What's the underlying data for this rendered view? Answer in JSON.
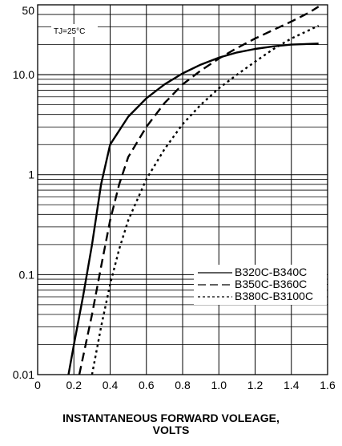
{
  "chart_data": {
    "type": "line",
    "x_scale": "linear",
    "y_scale": "log",
    "xlim": [
      0,
      1.6
    ],
    "ylim": [
      0.01,
      50
    ],
    "x_ticks": [
      "0",
      "0.2",
      "0.4",
      "0.6",
      "0.8",
      "1.0",
      "1.2",
      "1.4",
      "1.6"
    ],
    "y_ticks": [
      {
        "value": 0.01,
        "label": "0.01"
      },
      {
        "value": 0.1,
        "label": "0.1"
      },
      {
        "value": 1,
        "label": "1"
      },
      {
        "value": 10,
        "label": "10.0"
      },
      {
        "value": 50,
        "label": "50"
      }
    ],
    "grid": true,
    "xlabel_line1": "INSTANTANEOUS FORWARD VOLEAGE,",
    "xlabel_line2": "VOLTS",
    "annotation": "TJ=25°C",
    "legend_position": "lower-right",
    "series": [
      {
        "name": "B320C-B340C",
        "style": "solid",
        "color": "#000000",
        "x": [
          0.17,
          0.2,
          0.25,
          0.3,
          0.35,
          0.4,
          0.5,
          0.6,
          0.7,
          0.8,
          0.9,
          1.0,
          1.1,
          1.2,
          1.3,
          1.4,
          1.55
        ],
        "y": [
          0.01,
          0.02,
          0.06,
          0.2,
          0.8,
          2.0,
          3.8,
          5.8,
          8.0,
          10.3,
          12.6,
          14.8,
          16.7,
          18.1,
          19.2,
          20.0,
          20.5
        ]
      },
      {
        "name": "B350C-B360C",
        "style": "dashed",
        "color": "#000000",
        "x": [
          0.23,
          0.3,
          0.35,
          0.4,
          0.45,
          0.5,
          0.6,
          0.7,
          0.8,
          0.9,
          1.0,
          1.1,
          1.2,
          1.3,
          1.4,
          1.5,
          1.55
        ],
        "y": [
          0.01,
          0.04,
          0.12,
          0.35,
          0.8,
          1.5,
          3.0,
          5.2,
          8.0,
          11.0,
          14.5,
          18.5,
          23.0,
          28.0,
          34.0,
          42.0,
          48.0
        ]
      },
      {
        "name": "B380C-B3100C",
        "style": "dotted",
        "color": "#000000",
        "x": [
          0.3,
          0.35,
          0.4,
          0.45,
          0.5,
          0.6,
          0.7,
          0.8,
          0.9,
          1.0,
          1.1,
          1.2,
          1.3,
          1.4,
          1.5,
          1.55
        ],
        "y": [
          0.01,
          0.03,
          0.08,
          0.18,
          0.35,
          0.9,
          1.8,
          3.2,
          5.0,
          7.3,
          10.0,
          13.5,
          18.0,
          23.0,
          28.0,
          31.0
        ]
      }
    ]
  }
}
